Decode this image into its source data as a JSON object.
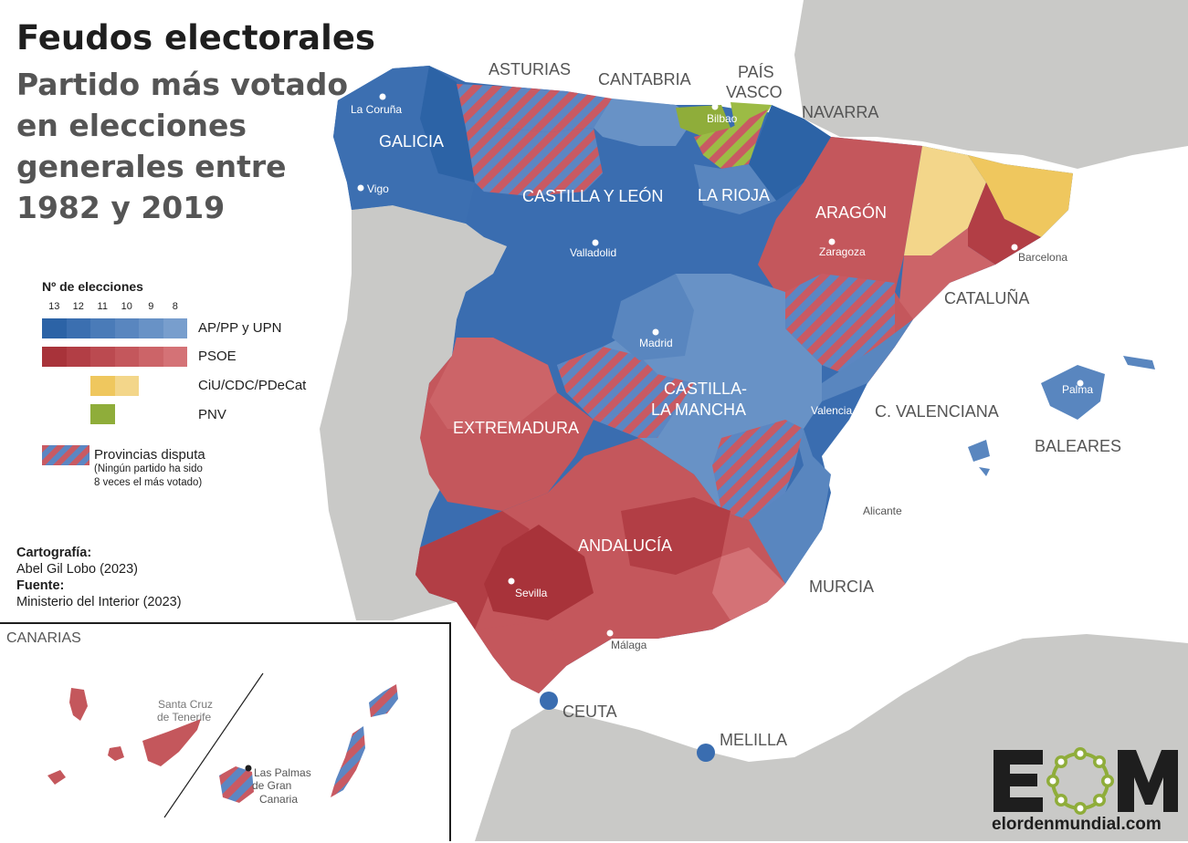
{
  "title": "Feudos electorales",
  "subtitle": "Partido más votado en elecciones generales entre 1982 y 2019",
  "legend": {
    "title": "Nº de elecciones",
    "counts": [
      "13",
      "12",
      "11",
      "10",
      "9",
      "8"
    ],
    "entries": [
      {
        "label": "AP/PP y UPN",
        "colors": [
          "#2c63a6",
          "#3b6fb0",
          "#4a7bb8",
          "#5986bf",
          "#6892c6",
          "#789ecd"
        ]
      },
      {
        "label": "PSOE",
        "colors": [
          "#a8333a",
          "#b23e45",
          "#bb4a50",
          "#c4575c",
          "#cc6468",
          "#d47276"
        ]
      },
      {
        "label": "CiU/CDC/PDeCat",
        "colors": [
          "#efc75e",
          "#f3d68a"
        ]
      },
      {
        "label": "PNV",
        "colors": [
          "#8fad3a"
        ]
      }
    ],
    "dispute_label": "Provincias disputa",
    "dispute_note_1": "(Ningún partido ha sido",
    "dispute_note_2": "8 veces el más votado)"
  },
  "credits": {
    "cartography_heading": "Cartografía:",
    "cartography": "Abel Gil Lobo (2023)",
    "source_heading": "Fuente:",
    "source": "Ministerio del Interior (2023)"
  },
  "regions": {
    "galicia": "GALICIA",
    "asturias": "ASTURIAS",
    "cantabria": "CANTABRIA",
    "pais_vasco_1": "PAÍS",
    "pais_vasco_2": "VASCO",
    "navarra": "NAVARRA",
    "castilla_leon": "CASTILLA Y LEÓN",
    "la_rioja": "LA RIOJA",
    "aragon": "ARAGÓN",
    "cataluna": "CATALUÑA",
    "castilla_mancha_1": "CASTILLA-",
    "castilla_mancha_2": "LA MANCHA",
    "valenciana": "C. VALENCIANA",
    "baleares": "BALEARES",
    "extremadura": "EXTREMADURA",
    "andalucia": "ANDALUCÍA",
    "murcia": "MURCIA",
    "ceuta": "CEUTA",
    "melilla": "MELILLA",
    "canarias": "CANARIAS"
  },
  "cities": {
    "la_coruna": "La Coruña",
    "vigo": "Vigo",
    "bilbao": "Bilbao",
    "valladolid": "Valladolid",
    "zaragoza": "Zaragoza",
    "barcelona": "Barcelona",
    "madrid": "Madrid",
    "valencia": "Valencia",
    "palma": "Palma",
    "alicante": "Alicante",
    "sevilla": "Sevilla",
    "malaga": "Málaga",
    "santa_cruz_1": "Santa Cruz",
    "santa_cruz_2": "de Tenerife",
    "las_palmas_1": "Las Palmas",
    "las_palmas_2": "de Gran",
    "las_palmas_3": "Canaria"
  },
  "logo": {
    "letters": "EOM",
    "site": "elordenmundial.com"
  }
}
